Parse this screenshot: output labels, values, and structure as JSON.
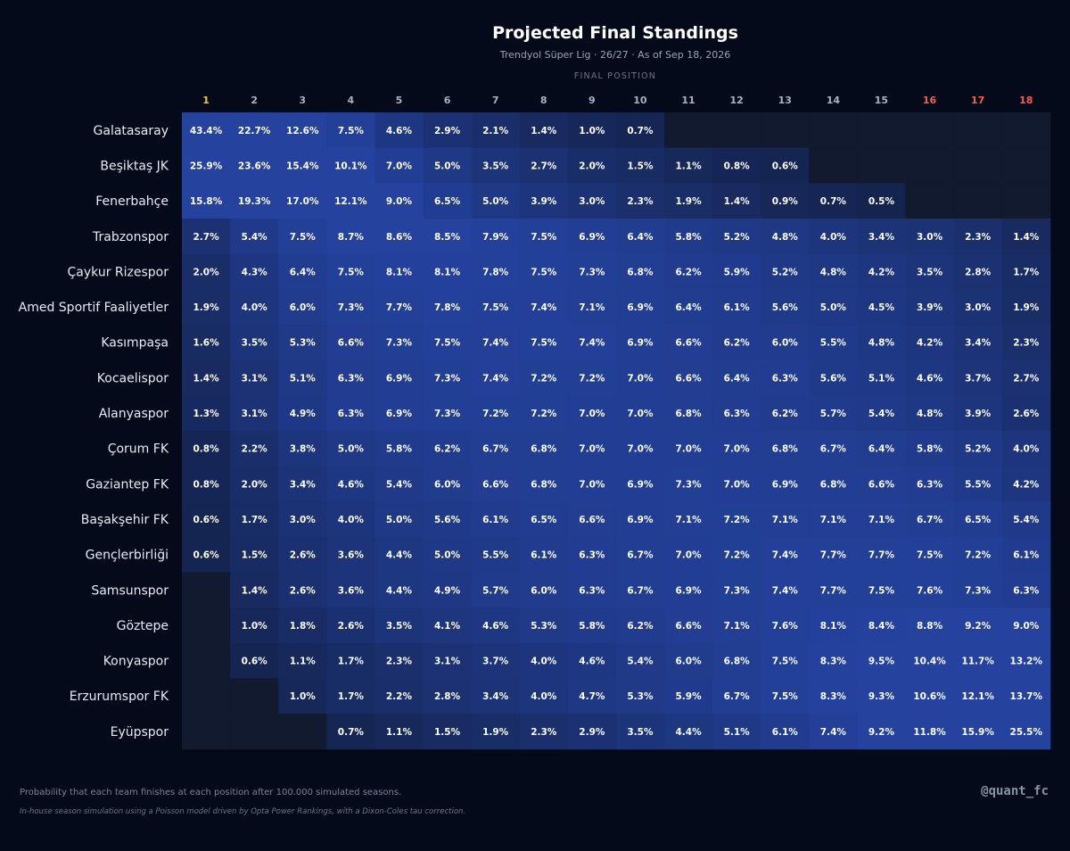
{
  "header": {
    "title": "Projected Final Standings",
    "subtitle": "Trendyol Süper Lig · 26/27 · As of Sep 18, 2026",
    "axis_title": "FINAL POSITION"
  },
  "footer": {
    "note": "Probability that each team finishes at each position after 100.000 simulated seasons.",
    "method": "In-house season simulation using a Poisson model driven by Opta Power Rankings, with a Dixon-Coles tau correction.",
    "handle": "@quant_fc"
  },
  "colors": {
    "background": "#050a1a",
    "top_position_label": "#f5c542",
    "relegation_label": "#ff5a4f",
    "position_label": "#aab2c5",
    "cell_low": "#0f1a36",
    "cell_high": "#24429e",
    "empty_cell": "#111a2e"
  },
  "chart_data": {
    "type": "heatmap",
    "title": "Projected Final Standings",
    "xlabel": "FINAL POSITION",
    "x": [
      "1",
      "2",
      "3",
      "4",
      "5",
      "6",
      "7",
      "8",
      "9",
      "10",
      "11",
      "12",
      "13",
      "14",
      "15",
      "16",
      "17",
      "18"
    ],
    "highlight_positions": {
      "champion": [
        "1"
      ],
      "relegation": [
        "16",
        "17",
        "18"
      ]
    },
    "y": [
      "Galatasaray",
      "Beşiktaş JK",
      "Fenerbahçe",
      "Trabzonspor",
      "Çaykur Rizespor",
      "Amed Sportif Faaliyetler",
      "Kasımpaşa",
      "Kocaelispor",
      "Alanyaspor",
      "Çorum FK",
      "Gaziantep FK",
      "Başakşehir FK",
      "Gençlerbirliği",
      "Samsunspor",
      "Göztepe",
      "Konyaspor",
      "Erzurumspor FK",
      "Eyüpspor"
    ],
    "unit": "%",
    "values": [
      [
        43.4,
        22.7,
        12.6,
        7.5,
        4.6,
        2.9,
        2.1,
        1.4,
        1.0,
        0.7,
        null,
        null,
        null,
        null,
        null,
        null,
        null,
        null
      ],
      [
        25.9,
        23.6,
        15.4,
        10.1,
        7.0,
        5.0,
        3.5,
        2.7,
        2.0,
        1.5,
        1.1,
        0.8,
        0.6,
        null,
        null,
        null,
        null,
        null
      ],
      [
        15.8,
        19.3,
        17.0,
        12.1,
        9.0,
        6.5,
        5.0,
        3.9,
        3.0,
        2.3,
        1.9,
        1.4,
        0.9,
        0.7,
        0.5,
        null,
        null,
        null
      ],
      [
        2.7,
        5.4,
        7.5,
        8.7,
        8.6,
        8.5,
        7.9,
        7.5,
        6.9,
        6.4,
        5.8,
        5.2,
        4.8,
        4.0,
        3.4,
        3.0,
        2.3,
        1.4
      ],
      [
        2.0,
        4.3,
        6.4,
        7.5,
        8.1,
        8.1,
        7.8,
        7.5,
        7.3,
        6.8,
        6.2,
        5.9,
        5.2,
        4.8,
        4.2,
        3.5,
        2.8,
        1.7
      ],
      [
        1.9,
        4.0,
        6.0,
        7.3,
        7.7,
        7.8,
        7.5,
        7.4,
        7.1,
        6.9,
        6.4,
        6.1,
        5.6,
        5.0,
        4.5,
        3.9,
        3.0,
        1.9
      ],
      [
        1.6,
        3.5,
        5.3,
        6.6,
        7.3,
        7.5,
        7.4,
        7.5,
        7.4,
        6.9,
        6.6,
        6.2,
        6.0,
        5.5,
        4.8,
        4.2,
        3.4,
        2.3
      ],
      [
        1.4,
        3.1,
        5.1,
        6.3,
        6.9,
        7.3,
        7.4,
        7.2,
        7.2,
        7.0,
        6.6,
        6.4,
        6.3,
        5.6,
        5.1,
        4.6,
        3.7,
        2.7
      ],
      [
        1.3,
        3.1,
        4.9,
        6.3,
        6.9,
        7.3,
        7.2,
        7.2,
        7.0,
        7.0,
        6.8,
        6.3,
        6.2,
        5.7,
        5.4,
        4.8,
        3.9,
        2.6
      ],
      [
        0.8,
        2.2,
        3.8,
        5.0,
        5.8,
        6.2,
        6.7,
        6.8,
        7.0,
        7.0,
        7.0,
        7.0,
        6.8,
        6.7,
        6.4,
        5.8,
        5.2,
        4.0
      ],
      [
        0.8,
        2.0,
        3.4,
        4.6,
        5.4,
        6.0,
        6.6,
        6.8,
        7.0,
        6.9,
        7.3,
        7.0,
        6.9,
        6.8,
        6.6,
        6.3,
        5.5,
        4.2
      ],
      [
        0.6,
        1.7,
        3.0,
        4.0,
        5.0,
        5.6,
        6.1,
        6.5,
        6.6,
        6.9,
        7.1,
        7.2,
        7.1,
        7.1,
        7.1,
        6.7,
        6.5,
        5.4
      ],
      [
        0.6,
        1.5,
        2.6,
        3.6,
        4.4,
        5.0,
        5.5,
        6.1,
        6.3,
        6.7,
        7.0,
        7.2,
        7.4,
        7.7,
        7.7,
        7.5,
        7.2,
        6.1
      ],
      [
        null,
        1.4,
        2.6,
        3.6,
        4.4,
        4.9,
        5.7,
        6.0,
        6.3,
        6.7,
        6.9,
        7.3,
        7.4,
        7.7,
        7.5,
        7.6,
        7.3,
        6.3
      ],
      [
        null,
        1.0,
        1.8,
        2.6,
        3.5,
        4.1,
        4.6,
        5.3,
        5.8,
        6.2,
        6.6,
        7.1,
        7.6,
        8.1,
        8.4,
        8.8,
        9.2,
        9.0
      ],
      [
        null,
        0.6,
        1.1,
        1.7,
        2.3,
        3.1,
        3.7,
        4.0,
        4.6,
        5.4,
        6.0,
        6.8,
        7.5,
        8.3,
        9.5,
        10.4,
        11.7,
        13.2
      ],
      [
        null,
        null,
        1.0,
        1.7,
        2.2,
        2.8,
        3.4,
        4.0,
        4.7,
        5.3,
        5.9,
        6.7,
        7.5,
        8.3,
        9.3,
        10.6,
        12.1,
        13.7
      ],
      [
        null,
        null,
        null,
        0.7,
        1.1,
        1.5,
        1.9,
        2.3,
        2.9,
        3.5,
        4.4,
        5.1,
        6.1,
        7.4,
        9.2,
        11.8,
        15.9,
        25.5
      ]
    ]
  }
}
